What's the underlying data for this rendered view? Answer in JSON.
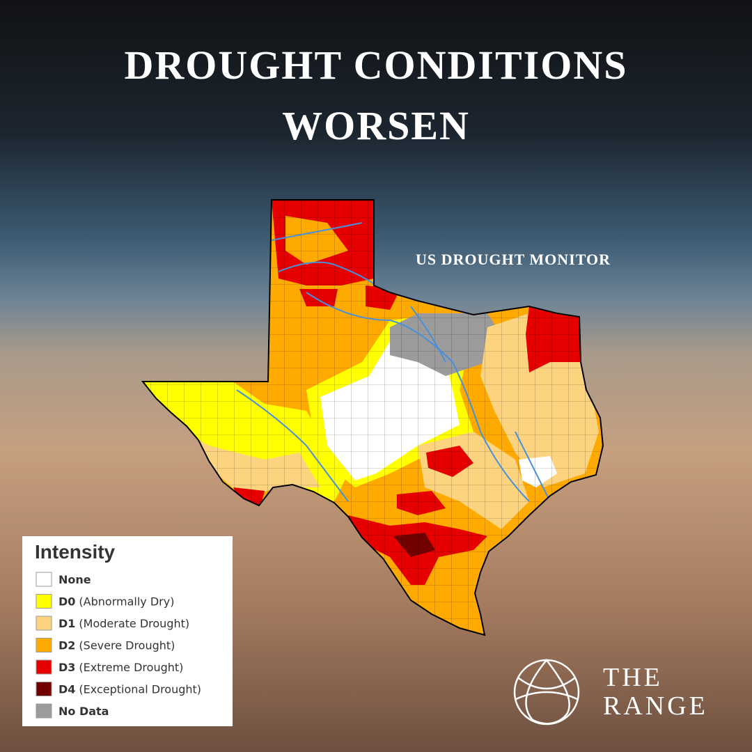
{
  "header": {
    "title": [
      "DROUGHT CONDITIONS",
      "WORSEN"
    ],
    "subtitle": "US DROUGHT MONITOR"
  },
  "legend": {
    "title": "Intensity",
    "items": [
      {
        "label": "None",
        "color": "#ffffff"
      },
      {
        "code": "D0",
        "label": "(Abnormally Dry)",
        "color": "#ffff00"
      },
      {
        "code": "D1",
        "label": "(Moderate Drought)",
        "color": "#fcd37f"
      },
      {
        "code": "D2",
        "label": "(Severe Drought)",
        "color": "#ffaa00"
      },
      {
        "code": "D3",
        "label": "(Extreme Drought)",
        "color": "#e60000"
      },
      {
        "code": "D4",
        "label": "(Exceptional Drought)",
        "color": "#730000"
      },
      {
        "label": "No Data",
        "color": "#9b9b9b"
      }
    ]
  },
  "brand": [
    "THE",
    "RANGE"
  ]
}
